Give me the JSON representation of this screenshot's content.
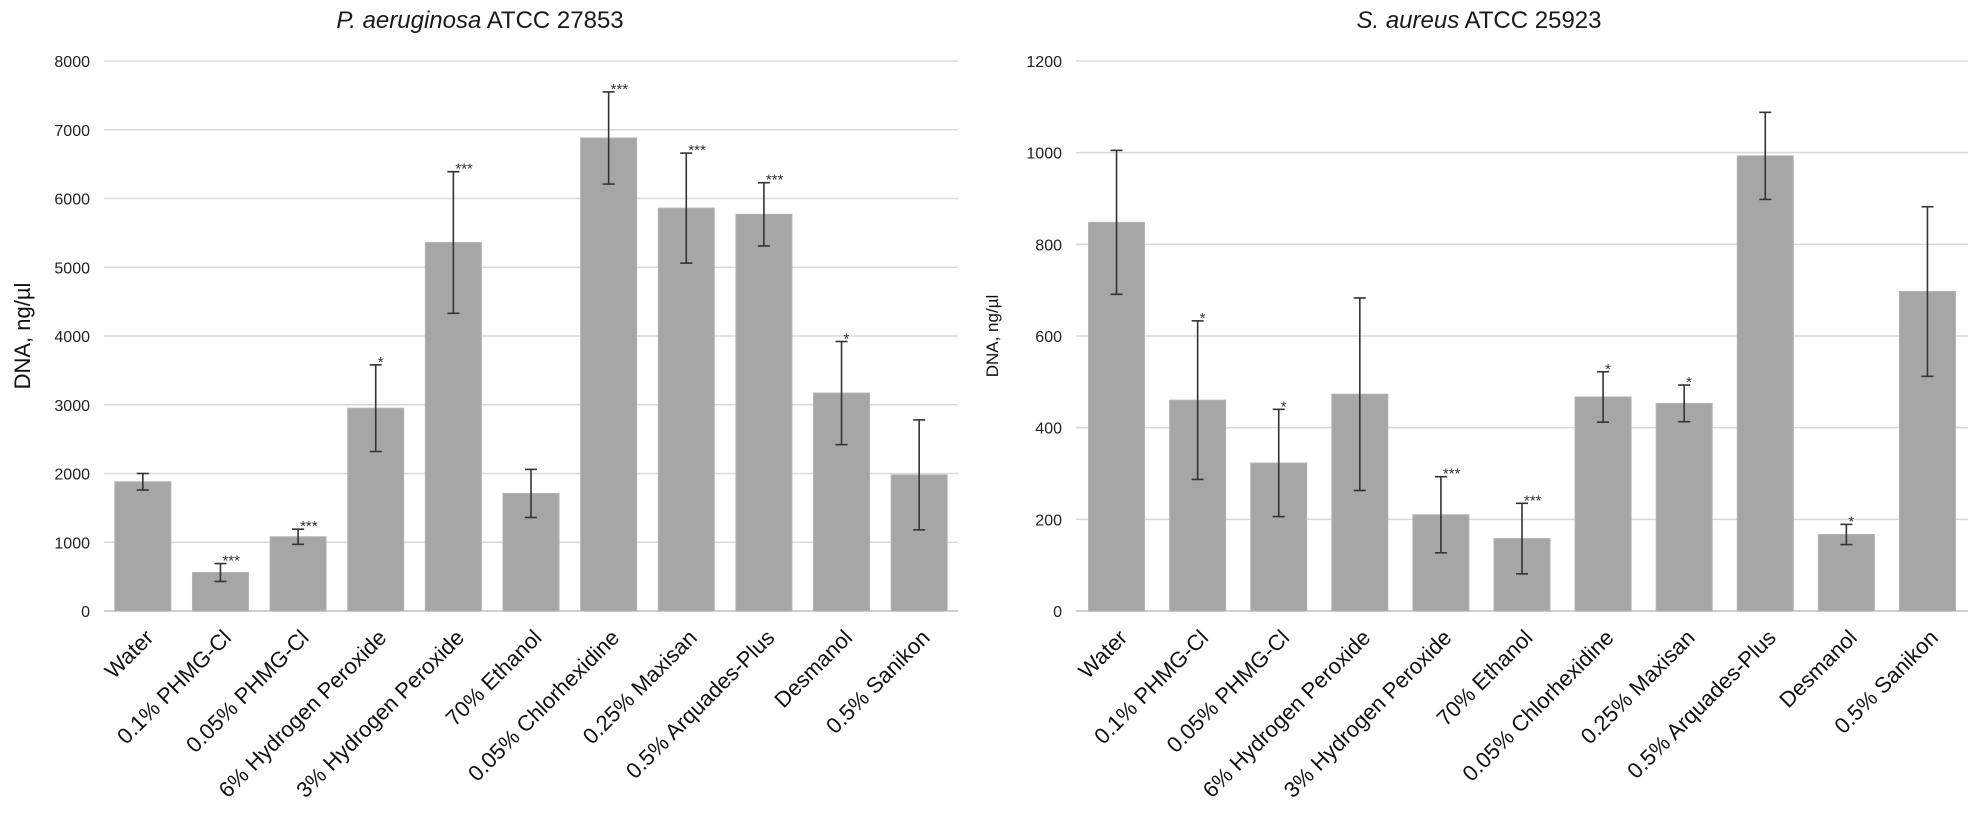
{
  "chart_data": [
    {
      "type": "bar",
      "title_italic": "P. aeruginosa",
      "title_rest": " ATCC 27853",
      "xlabel": "",
      "ylabel": "DNA, ng/µl",
      "ylim": [
        0,
        8000
      ],
      "yticks": [
        0,
        1000,
        2000,
        3000,
        4000,
        5000,
        6000,
        7000,
        8000
      ],
      "grid": true,
      "bar_color": "#a6a6a6",
      "categories": [
        "Water",
        "0.1% PHMG-Cl",
        "0.05% PHMG-Cl",
        "6% Hydrogen Peroxide",
        "3% Hydrogen Peroxide",
        "70% Ethanol",
        "0.05% Chlorhexidine",
        "0.25% Maxisan",
        "0.5% Arquades-Plus",
        "Desmanol",
        "0.5% Sanikon"
      ],
      "values": [
        1880,
        560,
        1080,
        2950,
        5360,
        1710,
        6880,
        5860,
        5770,
        3170,
        1980
      ],
      "errors": [
        120,
        130,
        110,
        630,
        1030,
        350,
        670,
        800,
        460,
        750,
        800
      ],
      "significance": [
        "",
        "***",
        "***",
        "*",
        "***",
        "",
        "***",
        "***",
        "***",
        "*",
        ""
      ]
    },
    {
      "type": "bar",
      "title_italic": "S. aureus",
      "title_rest": " ATCC 25923",
      "xlabel": "",
      "ylabel": "DNA, ng/µl",
      "ylim": [
        0,
        1200
      ],
      "yticks": [
        0,
        200,
        400,
        600,
        800,
        1000,
        1200
      ],
      "grid": true,
      "bar_color": "#a6a6a6",
      "categories": [
        "Water",
        "0.1% PHMG-Cl",
        "0.05% PHMG-Cl",
        "6% Hydrogen Peroxide",
        "3% Hydrogen Peroxide",
        "70% Ethanol",
        "0.05% Chlorhexidine",
        "0.25% Maxisan",
        "0.5% Arquades-Plus",
        "Desmanol",
        "0.5% Sanikon"
      ],
      "values": [
        848,
        460,
        323,
        473,
        210,
        158,
        467,
        453,
        993,
        167,
        697
      ],
      "errors": [
        157,
        173,
        117,
        210,
        83,
        77,
        55,
        40,
        95,
        22,
        185
      ],
      "significance": [
        "",
        "*",
        "*",
        "",
        "***",
        "***",
        "*",
        "*",
        "",
        "*",
        ""
      ]
    }
  ]
}
